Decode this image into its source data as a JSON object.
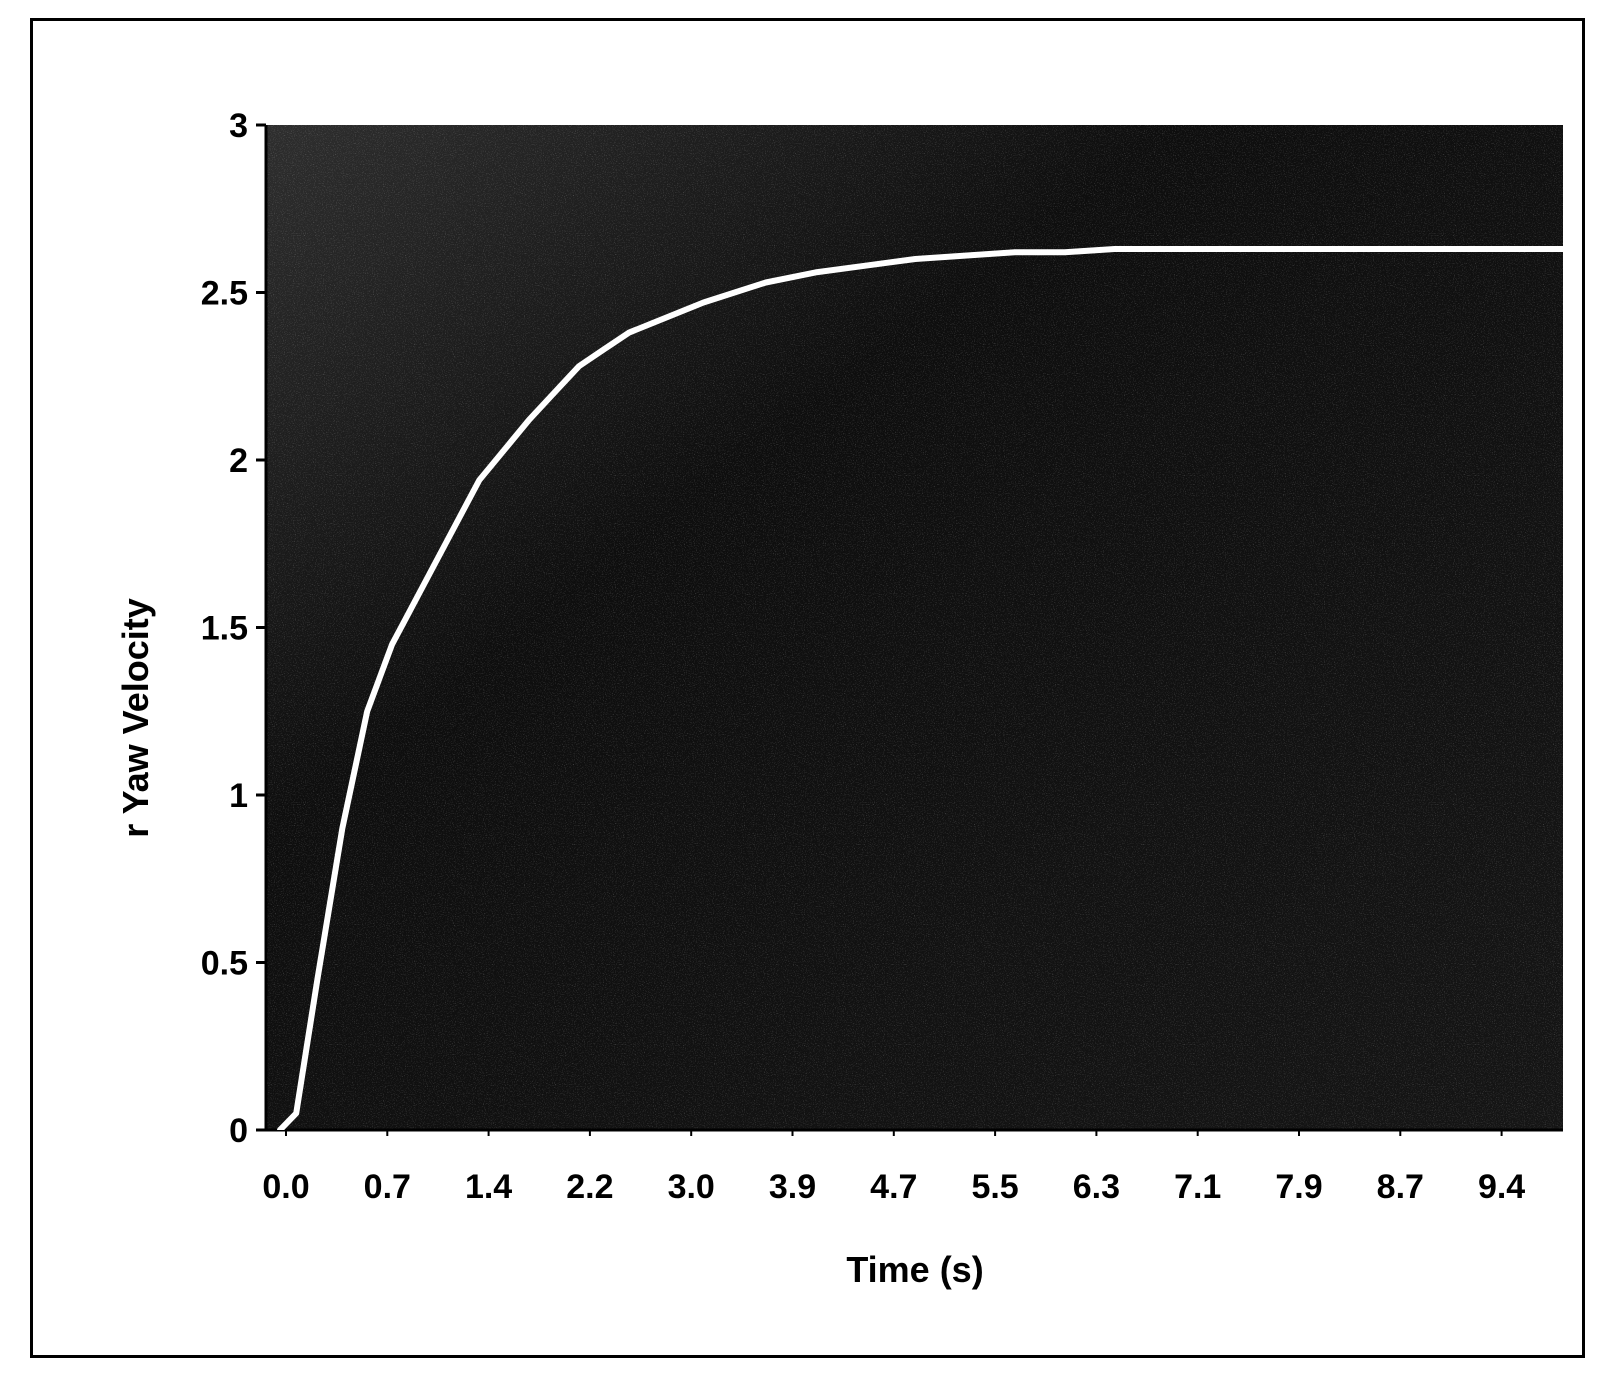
{
  "chart_data": {
    "type": "line",
    "title": "",
    "xlabel": "Time (s)",
    "ylabel": "r Yaw Velocity",
    "xlim": [
      0.0,
      10.3
    ],
    "ylim": [
      0,
      3
    ],
    "x_tick_labels": [
      "0.0",
      "0.7",
      "1.4",
      "2.2",
      "3.0",
      "3.9",
      "4.7",
      "5.5",
      "6.3",
      "7.1",
      "7.9",
      "8.7",
      "9.4"
    ],
    "y_tick_labels": [
      "0",
      "0.5",
      "1",
      "1.5",
      "2",
      "2.5",
      "3"
    ],
    "y_ticks": [
      0,
      0.5,
      1,
      1.5,
      2,
      2.5,
      3
    ],
    "grid": false,
    "legend": "none",
    "series": [
      {
        "x": [
          0.0,
          0.13,
          0.3,
          0.5,
          0.7,
          0.9,
          1.0,
          1.2,
          1.4,
          1.6,
          1.8,
          2.0,
          2.2,
          2.4,
          2.6,
          2.8,
          3.0,
          3.4,
          3.9,
          4.3,
          4.7,
          5.1,
          5.5,
          5.9,
          6.3,
          6.7,
          7.1,
          7.5,
          7.9,
          8.3,
          8.7,
          9.1,
          9.4,
          9.8,
          10.3
        ],
        "y": [
          0.0,
          0.05,
          0.45,
          0.9,
          1.25,
          1.45,
          1.52,
          1.66,
          1.8,
          1.94,
          2.03,
          2.12,
          2.2,
          2.28,
          2.33,
          2.38,
          2.41,
          2.47,
          2.53,
          2.56,
          2.58,
          2.6,
          2.61,
          2.62,
          2.62,
          2.63,
          2.63,
          2.63,
          2.63,
          2.63,
          2.63,
          2.63,
          2.63,
          2.63,
          2.63
        ]
      }
    ],
    "colors": {
      "background": "#ffffff",
      "plot_area": "#141414",
      "line": "#ffffff",
      "text": "#000000",
      "frame": "#000000"
    }
  }
}
